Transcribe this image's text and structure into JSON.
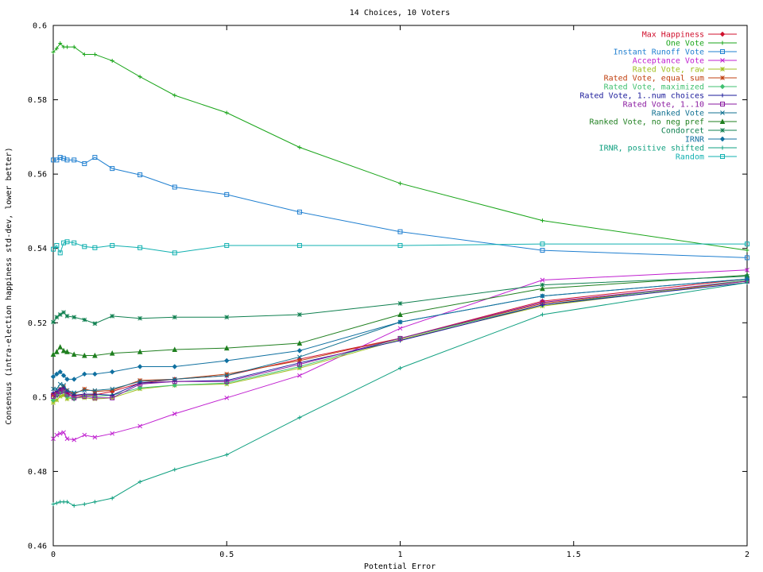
{
  "chart_data": {
    "type": "line",
    "title": "14 Choices, 10 Voters",
    "xlabel": "Potential Error",
    "ylabel": "Consensus (intra-election happiness std-dev, lower better)",
    "xlim": [
      0,
      2
    ],
    "ylim": [
      0.46,
      0.6
    ],
    "xticks": [
      0,
      0.5,
      1,
      1.5,
      2
    ],
    "xtick_labels": [
      "0",
      "0.5",
      "1",
      "1.5",
      "2"
    ],
    "yticks": [
      0.46,
      0.48,
      0.5,
      0.52,
      0.54,
      0.56,
      0.58,
      0.6
    ],
    "ytick_labels": [
      "0.46",
      "0.48",
      "0.5",
      "0.52",
      "0.54",
      "0.56",
      "0.58",
      "0.6"
    ],
    "grid": false,
    "legend_position": "top-right",
    "x": [
      0,
      0.01,
      0.02,
      0.03,
      0.04,
      0.06,
      0.09,
      0.12,
      0.17,
      0.25,
      0.35,
      0.5,
      0.71,
      1.0,
      1.41,
      2.0
    ],
    "series": [
      {
        "name": "Max Happiness",
        "color": "#d0102d",
        "marker": "diamond",
        "values": [
          0.5008,
          0.5012,
          0.5018,
          0.5022,
          0.501,
          0.5003,
          0.5005,
          0.5006,
          0.5015,
          0.5038,
          0.5048,
          0.5058,
          0.5102,
          0.5158,
          0.5258,
          0.5318
        ]
      },
      {
        "name": "One Vote",
        "color": "#1aa51a",
        "marker": "plus",
        "values": [
          0.5928,
          0.5938,
          0.5952,
          0.5942,
          0.5942,
          0.5942,
          0.5922,
          0.5922,
          0.5905,
          0.5862,
          0.5812,
          0.5765,
          0.5672,
          0.5575,
          0.5475,
          0.5395
        ]
      },
      {
        "name": "Instant Runoff Vote",
        "color": "#1f7fd0",
        "marker": "square",
        "values": [
          0.5638,
          0.5638,
          0.5645,
          0.5642,
          0.5638,
          0.5638,
          0.5628,
          0.5645,
          0.5615,
          0.5598,
          0.5565,
          0.5545,
          0.5498,
          0.5445,
          0.5395,
          0.5375
        ]
      },
      {
        "name": "Acceptance Vote",
        "color": "#c020d0",
        "marker": "x",
        "values": [
          0.4888,
          0.4898,
          0.4902,
          0.4905,
          0.4888,
          0.4885,
          0.4898,
          0.4892,
          0.4902,
          0.4922,
          0.4955,
          0.4998,
          0.5058,
          0.5185,
          0.5315,
          0.5342
        ]
      },
      {
        "name": "Rated Vote, raw",
        "color": "#a0c020",
        "marker": "star",
        "values": [
          0.4985,
          0.4992,
          0.5002,
          0.5005,
          0.4995,
          0.4998,
          0.4998,
          0.4995,
          0.4998,
          0.5022,
          0.5032,
          0.5035,
          0.5078,
          0.5155,
          0.5245,
          0.5312
        ]
      },
      {
        "name": "Rated Vote, equal sum",
        "color": "#c04010",
        "marker": "star",
        "values": [
          0.5005,
          0.5012,
          0.5022,
          0.5028,
          0.5018,
          0.5008,
          0.5022,
          0.5015,
          0.5018,
          0.5045,
          0.5048,
          0.5062,
          0.5098,
          0.5158,
          0.5252,
          0.5312
        ]
      },
      {
        "name": "Rated Vote, maximized",
        "color": "#40c070",
        "marker": "diamond",
        "values": [
          0.4992,
          0.5005,
          0.5012,
          0.5015,
          0.5002,
          0.4995,
          0.5005,
          0.5002,
          0.5005,
          0.5025,
          0.5032,
          0.5038,
          0.5082,
          0.5158,
          0.5248,
          0.5315
        ]
      },
      {
        "name": "Rated Vote, 1..num choices",
        "color": "#1a1a9a",
        "marker": "plus",
        "values": [
          0.5012,
          0.5015,
          0.5022,
          0.5025,
          0.5015,
          0.5005,
          0.5008,
          0.5008,
          0.5005,
          0.5038,
          0.5042,
          0.5045,
          0.5092,
          0.5152,
          0.5248,
          0.5308
        ]
      },
      {
        "name": "Rated Vote, 1..10",
        "color": "#8a1aa0",
        "marker": "square",
        "values": [
          0.5002,
          0.5008,
          0.5015,
          0.5018,
          0.5008,
          0.4998,
          0.5002,
          0.4998,
          0.4998,
          0.5035,
          0.5042,
          0.5042,
          0.5088,
          0.5158,
          0.5255,
          0.5312
        ]
      },
      {
        "name": "Ranked Vote",
        "color": "#107090",
        "marker": "x",
        "values": [
          0.5022,
          0.5022,
          0.5035,
          0.5032,
          0.5018,
          0.5012,
          0.5018,
          0.5018,
          0.5022,
          0.5042,
          0.5048,
          0.5058,
          0.5108,
          0.5202,
          0.5272,
          0.5318
        ]
      },
      {
        "name": "Ranked Vote, no neg pref",
        "color": "#1f7f1f",
        "marker": "triangle",
        "values": [
          0.5115,
          0.5122,
          0.5135,
          0.5125,
          0.5122,
          0.5115,
          0.5112,
          0.5112,
          0.5118,
          0.5122,
          0.5128,
          0.5132,
          0.5145,
          0.5222,
          0.5292,
          0.5328
        ]
      },
      {
        "name": "Condorcet",
        "color": "#108050",
        "marker": "star",
        "values": [
          0.5202,
          0.5215,
          0.5222,
          0.5228,
          0.5218,
          0.5215,
          0.5208,
          0.5198,
          0.5218,
          0.5212,
          0.5215,
          0.5215,
          0.5222,
          0.5252,
          0.5302,
          0.5325
        ]
      },
      {
        "name": "IRNR",
        "color": "#1070a0",
        "marker": "diamond",
        "values": [
          0.5055,
          0.5062,
          0.5068,
          0.5058,
          0.5048,
          0.5048,
          0.5062,
          0.5062,
          0.5068,
          0.5082,
          0.5082,
          0.5098,
          0.5125,
          0.5202,
          0.5272,
          0.5318
        ]
      },
      {
        "name": "IRNR, positive shifted",
        "color": "#10a080",
        "marker": "plus",
        "values": [
          0.4712,
          0.4715,
          0.4718,
          0.4718,
          0.4718,
          0.4708,
          0.4712,
          0.4718,
          0.4728,
          0.4772,
          0.4805,
          0.4845,
          0.4945,
          0.5078,
          0.5222,
          0.5308
        ]
      },
      {
        "name": "Random",
        "color": "#10b0b0",
        "marker": "square",
        "values": [
          0.5398,
          0.5408,
          0.5388,
          0.5415,
          0.5418,
          0.5415,
          0.5405,
          0.5402,
          0.5408,
          0.5402,
          0.5388,
          0.5408,
          0.5408,
          0.5408,
          0.5412,
          0.5412
        ]
      }
    ]
  }
}
